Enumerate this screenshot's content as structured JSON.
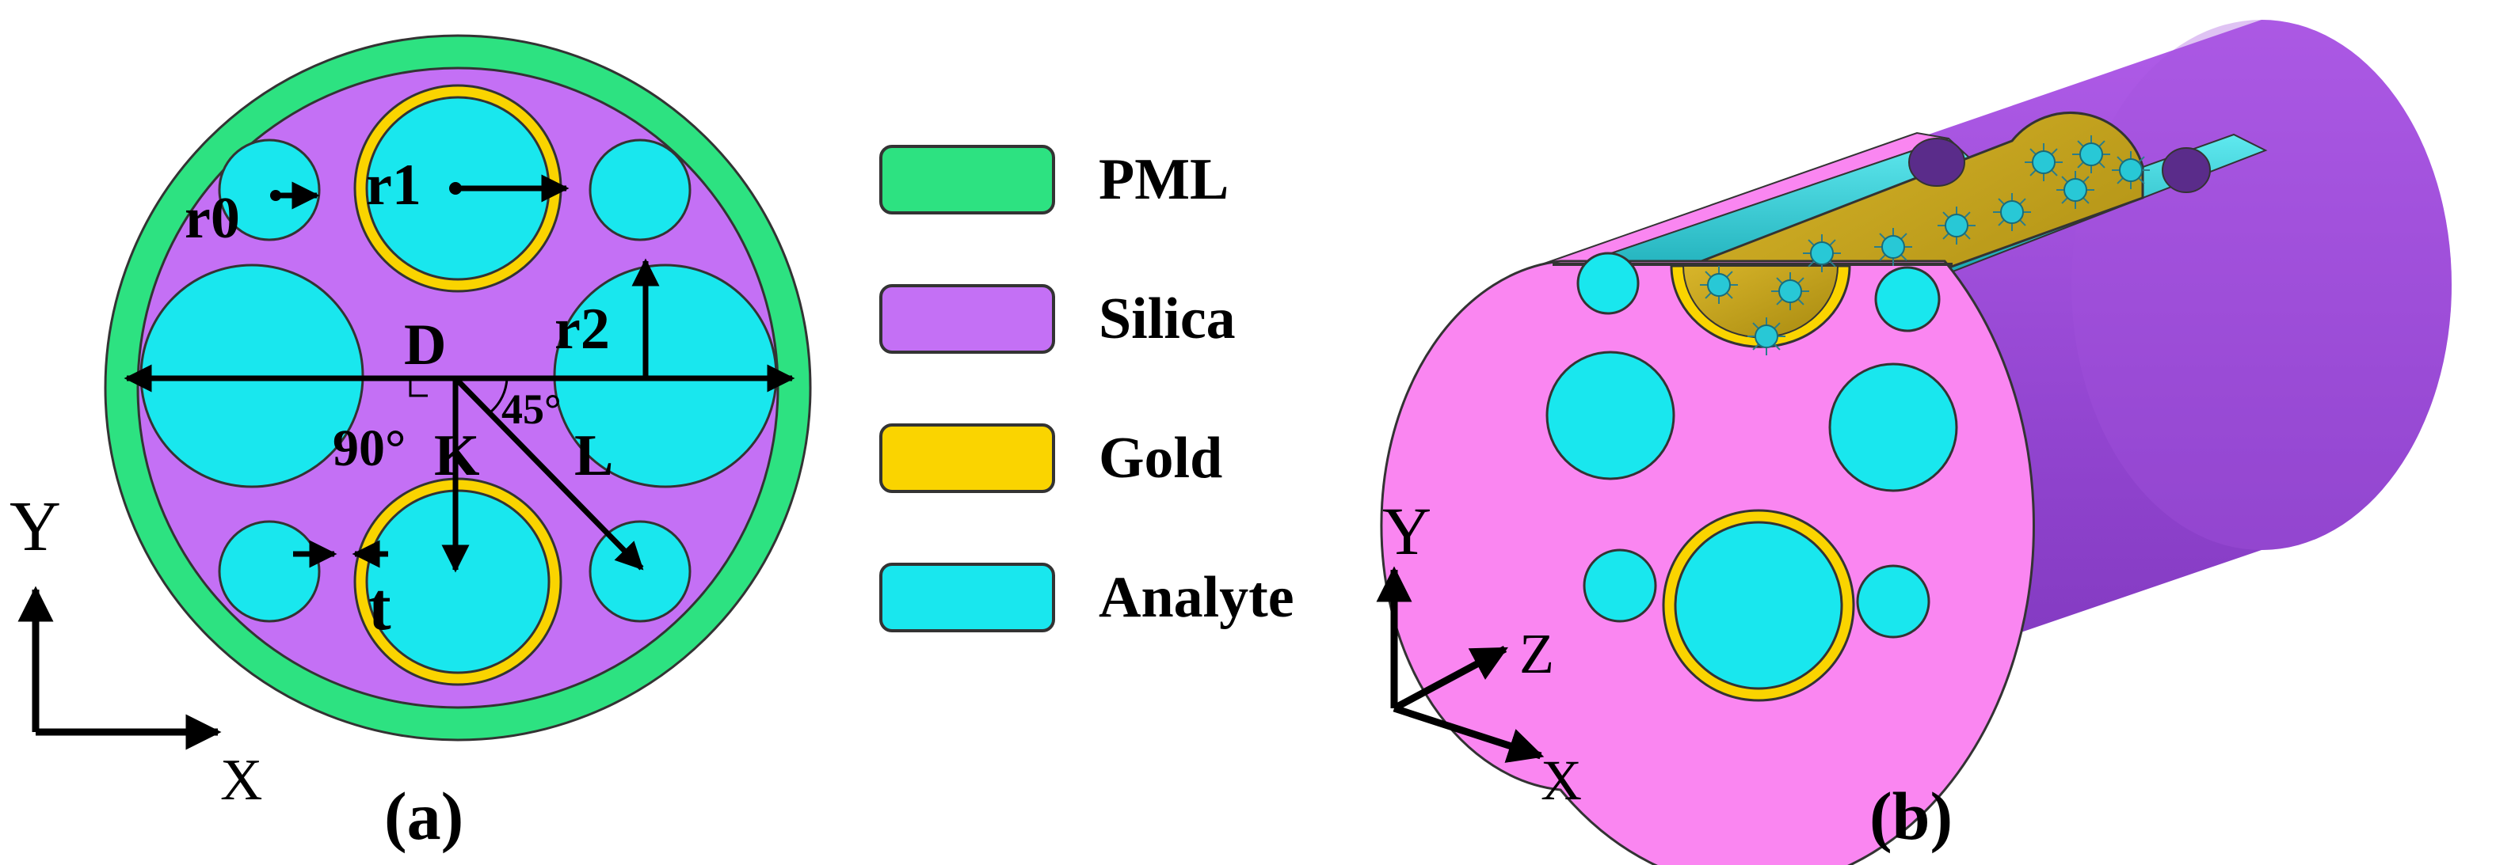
{
  "panel_a": {
    "caption": "(a)",
    "labels": {
      "r0": "r0",
      "r1": "r1",
      "r2": "r2",
      "D": "D",
      "K": "K",
      "L": "L",
      "t": "t",
      "angle_45": "45°",
      "angle_90": "90°"
    },
    "axes": {
      "y": "Y",
      "x": "X"
    }
  },
  "legend": {
    "items": [
      {
        "label": "PML",
        "color": "#2de281"
      },
      {
        "label": "Silica",
        "color": "#c470f5"
      },
      {
        "label": "Gold",
        "color": "#fad400"
      },
      {
        "label": "Analyte",
        "color": "#19e7ee"
      }
    ]
  },
  "panel_b": {
    "caption": "(b)",
    "axes": {
      "y": "Y",
      "z": "Z",
      "x": "X"
    }
  },
  "colors": {
    "pml": "#2de281",
    "silica": "#c470f5",
    "gold": "#fad400",
    "analyte": "#19e7ee",
    "cladding_face": "#fa86f1",
    "cylinder_body": "#9e4ad6",
    "gold_channel": "#c9a800"
  }
}
